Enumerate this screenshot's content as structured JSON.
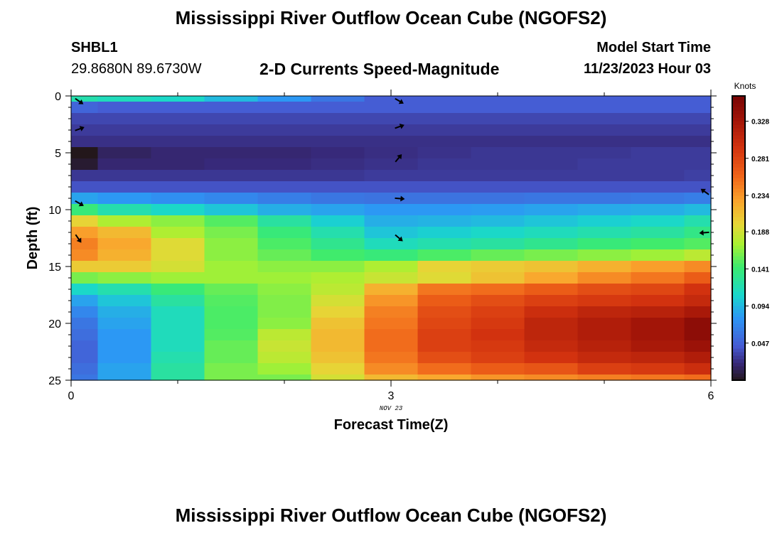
{
  "header": {
    "title": "Mississippi River Outflow Ocean Cube (NGOFS2)",
    "station_id": "SHBL1",
    "coords": "29.8680N  89.6730W",
    "model_start_label": "Model Start Time",
    "model_start_value": "11/23/2023 Hour 03"
  },
  "footer": {
    "title": "Mississippi River Outflow Ocean Cube (NGOFS2)"
  },
  "chart_data": {
    "type": "heatmap",
    "title": "2-D Currents Speed-Magnitude",
    "xlabel": "Forecast Time(Z)",
    "ylabel": "Depth (ft)",
    "x_date_label": "NOV 23",
    "xlim": [
      0,
      6
    ],
    "ylim": [
      0,
      25
    ],
    "y_inverted": true,
    "x_ticks": [
      0,
      3,
      6
    ],
    "y_ticks": [
      0,
      5,
      10,
      15,
      20,
      25
    ],
    "x_edges": [
      0,
      0.25,
      0.75,
      1.25,
      1.75,
      2.25,
      2.75,
      3.25,
      3.75,
      4.25,
      4.75,
      5.25,
      5.75,
      6
    ],
    "y_edges": [
      0,
      0.5,
      1.5,
      2.5,
      3.5,
      4.5,
      5.5,
      6.5,
      7.5,
      8.5,
      9.5,
      10.5,
      11.5,
      12.5,
      13.5,
      14.5,
      15.5,
      16.5,
      17.5,
      18.5,
      19.5,
      20.5,
      21.5,
      22.5,
      23.5,
      24.5,
      25
    ],
    "values": [
      [
        0.12,
        0.115,
        0.11,
        0.095,
        0.08,
        0.06,
        0.045,
        0.045,
        0.045,
        0.045,
        0.045,
        0.045,
        0.045
      ],
      [
        0.05,
        0.045,
        0.045,
        0.045,
        0.045,
        0.045,
        0.045,
        0.045,
        0.045,
        0.045,
        0.045,
        0.045,
        0.045
      ],
      [
        0.035,
        0.035,
        0.035,
        0.035,
        0.035,
        0.035,
        0.035,
        0.035,
        0.035,
        0.035,
        0.035,
        0.035,
        0.035
      ],
      [
        0.03,
        0.03,
        0.03,
        0.03,
        0.03,
        0.03,
        0.03,
        0.03,
        0.03,
        0.03,
        0.03,
        0.03,
        0.03
      ],
      [
        0.025,
        0.025,
        0.025,
        0.025,
        0.025,
        0.025,
        0.025,
        0.025,
        0.025,
        0.025,
        0.025,
        0.025,
        0.025
      ],
      [
        0.0,
        0.016,
        0.02,
        0.02,
        0.02,
        0.022,
        0.024,
        0.026,
        0.028,
        0.028,
        0.028,
        0.03,
        0.03
      ],
      [
        0.005,
        0.02,
        0.02,
        0.022,
        0.022,
        0.024,
        0.026,
        0.028,
        0.028,
        0.028,
        0.03,
        0.03,
        0.03
      ],
      [
        0.028,
        0.028,
        0.028,
        0.028,
        0.028,
        0.028,
        0.03,
        0.03,
        0.03,
        0.03,
        0.03,
        0.03,
        0.032
      ],
      [
        0.04,
        0.04,
        0.04,
        0.04,
        0.04,
        0.04,
        0.04,
        0.04,
        0.04,
        0.04,
        0.04,
        0.04,
        0.04
      ],
      [
        0.085,
        0.08,
        0.075,
        0.07,
        0.065,
        0.06,
        0.058,
        0.058,
        0.058,
        0.06,
        0.06,
        0.062,
        0.065
      ],
      [
        0.14,
        0.12,
        0.11,
        0.1,
        0.09,
        0.085,
        0.08,
        0.08,
        0.082,
        0.085,
        0.088,
        0.09,
        0.095
      ],
      [
        0.2,
        0.175,
        0.165,
        0.15,
        0.125,
        0.105,
        0.09,
        0.092,
        0.095,
        0.1,
        0.105,
        0.11,
        0.12
      ],
      [
        0.23,
        0.215,
        0.175,
        0.16,
        0.14,
        0.12,
        0.1,
        0.105,
        0.11,
        0.115,
        0.12,
        0.125,
        0.135
      ],
      [
        0.245,
        0.225,
        0.195,
        0.165,
        0.148,
        0.132,
        0.115,
        0.12,
        0.125,
        0.132,
        0.14,
        0.145,
        0.15
      ],
      [
        0.24,
        0.22,
        0.195,
        0.165,
        0.155,
        0.145,
        0.14,
        0.148,
        0.155,
        0.16,
        0.165,
        0.17,
        0.18
      ],
      [
        0.205,
        0.205,
        0.19,
        0.17,
        0.165,
        0.165,
        0.175,
        0.2,
        0.205,
        0.21,
        0.22,
        0.23,
        0.24
      ],
      [
        0.16,
        0.165,
        0.17,
        0.17,
        0.17,
        0.175,
        0.185,
        0.195,
        0.21,
        0.225,
        0.24,
        0.25,
        0.265
      ],
      [
        0.11,
        0.12,
        0.14,
        0.155,
        0.165,
        0.18,
        0.22,
        0.25,
        0.255,
        0.265,
        0.275,
        0.28,
        0.295
      ],
      [
        0.085,
        0.1,
        0.125,
        0.15,
        0.162,
        0.19,
        0.235,
        0.265,
        0.275,
        0.285,
        0.29,
        0.295,
        0.305
      ],
      [
        0.07,
        0.09,
        0.115,
        0.148,
        0.162,
        0.2,
        0.245,
        0.275,
        0.285,
        0.3,
        0.31,
        0.315,
        0.325
      ],
      [
        0.06,
        0.085,
        0.115,
        0.148,
        0.165,
        0.21,
        0.25,
        0.28,
        0.29,
        0.31,
        0.32,
        0.33,
        0.345
      ],
      [
        0.055,
        0.08,
        0.115,
        0.15,
        0.18,
        0.215,
        0.255,
        0.285,
        0.295,
        0.31,
        0.32,
        0.33,
        0.345
      ],
      [
        0.05,
        0.08,
        0.115,
        0.155,
        0.185,
        0.215,
        0.255,
        0.285,
        0.29,
        0.305,
        0.315,
        0.325,
        0.335
      ],
      [
        0.05,
        0.08,
        0.12,
        0.155,
        0.18,
        0.21,
        0.25,
        0.275,
        0.285,
        0.295,
        0.305,
        0.31,
        0.32
      ],
      [
        0.055,
        0.085,
        0.125,
        0.16,
        0.17,
        0.2,
        0.24,
        0.255,
        0.265,
        0.27,
        0.285,
        0.29,
        0.3
      ],
      [
        0.06,
        0.085,
        0.125,
        0.16,
        0.16,
        0.19,
        0.215,
        0.225,
        0.235,
        0.24,
        0.245,
        0.25,
        0.255
      ]
    ],
    "vectors": [
      {
        "x": 0.05,
        "depth": 0.3,
        "angle": 35
      },
      {
        "x": 0.05,
        "depth": 3.0,
        "angle": -20
      },
      {
        "x": 0.05,
        "depth": 9.3,
        "angle": 30
      },
      {
        "x": 0.05,
        "depth": 12.3,
        "angle": 55
      },
      {
        "x": 3.05,
        "depth": 0.3,
        "angle": 30
      },
      {
        "x": 3.05,
        "depth": 2.8,
        "angle": -20
      },
      {
        "x": 3.05,
        "depth": 5.7,
        "angle": -50
      },
      {
        "x": 3.05,
        "depth": 9.0,
        "angle": 5
      },
      {
        "x": 3.05,
        "depth": 12.3,
        "angle": 40
      },
      {
        "x": 5.97,
        "depth": 8.6,
        "angle": -145
      },
      {
        "x": 5.97,
        "depth": 12.0,
        "angle": 175
      }
    ],
    "colorbar": {
      "label": "Knots",
      "min": 0.0,
      "max": 0.36,
      "ticks": [
        0.047,
        0.094,
        0.141,
        0.188,
        0.234,
        0.281,
        0.328
      ],
      "tick_labels": [
        "0.047",
        "0.094",
        "0.141",
        "0.188",
        "0.234",
        "0.281",
        "0.328"
      ]
    }
  }
}
